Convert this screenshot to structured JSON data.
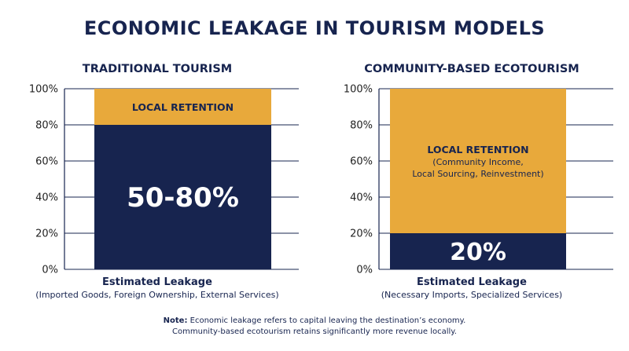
{
  "title": "ECONOMIC LEAKAGE IN TOURISM MODELS",
  "colors": {
    "navy": "#17244f",
    "gold": "#e8a93b",
    "grid": "#17244f"
  },
  "chart_data": [
    {
      "type": "bar",
      "stacked": true,
      "title": "TRADITIONAL TOURISM",
      "ylim": [
        0,
        100
      ],
      "yticks": [
        "0%",
        "20%",
        "40%",
        "60%",
        "80%",
        "100%"
      ],
      "ytick_values": [
        0,
        20,
        40,
        60,
        80,
        100
      ],
      "grid": true,
      "series": [
        {
          "name": "Estimated Leakage",
          "value": 80,
          "label": "50-80%",
          "color": "#17244f"
        },
        {
          "name": "LOCAL RETENTION",
          "value": 20,
          "label": "LOCAL RETENTION",
          "sublabel": "",
          "color": "#e8a93b"
        }
      ],
      "caption": "Estimated Leakage",
      "caption_detail": "(Imported Goods, Foreign Ownership, External Services)"
    },
    {
      "type": "bar",
      "stacked": true,
      "title": "COMMUNITY-BASED ECOTOURISM",
      "ylim": [
        0,
        100
      ],
      "yticks": [
        "0%",
        "20%",
        "40%",
        "60%",
        "80%",
        "100%"
      ],
      "ytick_values": [
        0,
        20,
        40,
        60,
        80,
        100
      ],
      "grid": true,
      "series": [
        {
          "name": "Estimated Leakage",
          "value": 20,
          "label": "20%",
          "color": "#17244f"
        },
        {
          "name": "LOCAL RETENTION",
          "value": 80,
          "label": "LOCAL RETENTION",
          "sublabel": "(Community Income,\nLocal Sourcing, Reinvestment)",
          "color": "#e8a93b"
        }
      ],
      "caption": "Estimated Leakage",
      "caption_detail": "(Necessary Imports, Specialized Services)"
    }
  ],
  "note": {
    "label": "Note:",
    "line1": "Economic leakage refers to capital leaving the destination’s economy.",
    "line2": "Community-based ecotourism retains significantly more revenue locally."
  }
}
